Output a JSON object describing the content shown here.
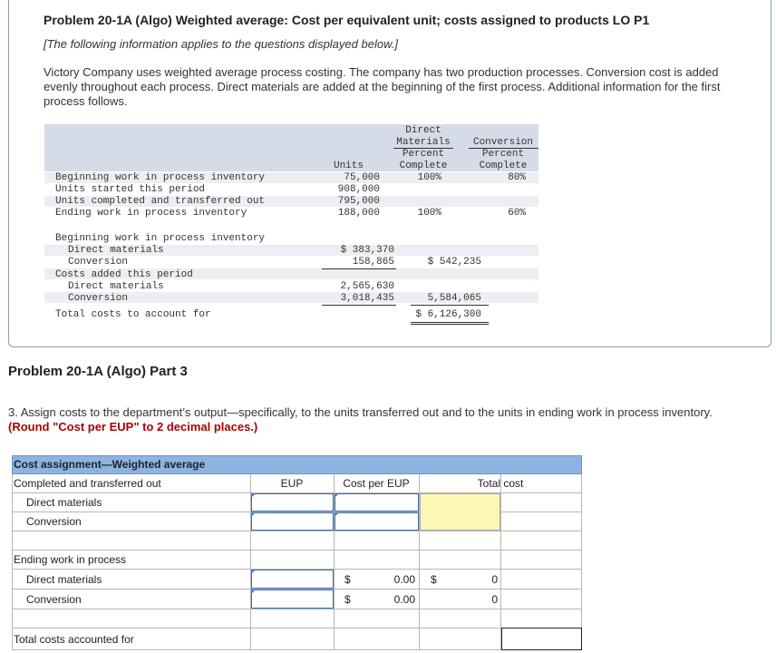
{
  "problem": {
    "title": "Problem 20-1A (Algo) Weighted average: Cost per equivalent unit; costs assigned to products LO P1",
    "subnote": "[The following information applies to the questions displayed below.]",
    "intro": "Victory Company uses weighted average process costing. The company has two production processes. Conversion cost is added evenly throughout each process. Direct materials are added at the beginning of the first process. Additional information for the first process follows."
  },
  "production_table": {
    "headers": {
      "units": "Units",
      "dm": [
        "Direct",
        "Materials",
        "Percent",
        "Complete"
      ],
      "conv": [
        "Conversion",
        "Percent",
        "Complete"
      ]
    },
    "unit_rows": [
      {
        "label": "Beginning work in process inventory",
        "units": "75,000",
        "dm": "100%",
        "conv": "80%"
      },
      {
        "label": "Units started this period",
        "units": "908,000",
        "dm": "",
        "conv": ""
      },
      {
        "label": "Units completed and transferred out",
        "units": "795,000",
        "dm": "",
        "conv": ""
      },
      {
        "label": "Ending work in process inventory",
        "units": "188,000",
        "dm": "100%",
        "conv": "60%"
      }
    ],
    "cost_rows": {
      "beginning_label": "Beginning work in process inventory",
      "beg_dm_label": "Direct materials",
      "beg_dm_value": "$ 383,370",
      "beg_conv_label": "Conversion",
      "beg_conv_value": "158,865",
      "beg_total": "$ 542,235",
      "added_label": "Costs added this period",
      "add_dm_label": "Direct materials",
      "add_dm_value": "2,565,630",
      "add_conv_label": "Conversion",
      "add_conv_value": "3,018,435",
      "add_total": "5,584,065",
      "total_label": "Total costs to account for",
      "total_value": "$ 6,126,300"
    }
  },
  "part": {
    "heading": "Problem 20-1A (Algo) Part 3",
    "question_prefix": "3. Assign costs to the department’s output—specifically, to the units transferred out and to the units in ending work in process inventory.",
    "question_note": "(Round \"Cost per EUP\" to 2 decimal places.)"
  },
  "assignment_table": {
    "title": "Cost assignment—Weighted average",
    "col_eup": "EUP",
    "col_cost_per_eup": "Cost per EUP",
    "col_total_cost": "Total cost",
    "completed_label": "Completed and transferred out",
    "completed_dm_label": "Direct materials",
    "completed_conv_label": "Conversion",
    "ending_label": "Ending work in process",
    "ending_dm_label": "Direct materials",
    "ending_conv_label": "Conversion",
    "ending_dm_dollar": "$",
    "ending_dm_rate": "0.00",
    "ending_dm_total_dollar": "$",
    "ending_dm_total": "0",
    "ending_conv_dollar": "$",
    "ending_conv_rate": "0.00",
    "ending_conv_total": "0",
    "total_label": "Total costs accounted for"
  },
  "colors": {
    "header_blue": "#8db3e2",
    "input_border": "#3c6aa6",
    "total_yellow": "#fcf8b3",
    "note_red": "#a00000"
  }
}
